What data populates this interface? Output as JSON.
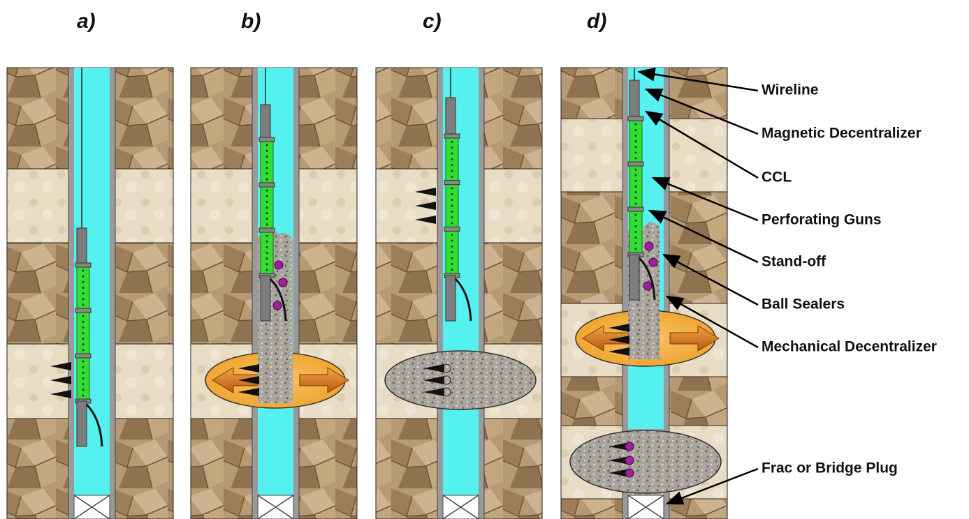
{
  "panels": [
    {
      "label": "a)"
    },
    {
      "label": "b)"
    },
    {
      "label": "c)"
    },
    {
      "label": "d)"
    }
  ],
  "callouts": [
    {
      "label": "Wireline"
    },
    {
      "label": "Magnetic Decentralizer"
    },
    {
      "label": "CCL"
    },
    {
      "label": "Perforating Guns"
    },
    {
      "label": "Stand-off"
    },
    {
      "label": "Ball Sealers"
    },
    {
      "label": "Mechanical Decentralizer"
    },
    {
      "label": "Frac or Bridge Plug"
    }
  ]
}
